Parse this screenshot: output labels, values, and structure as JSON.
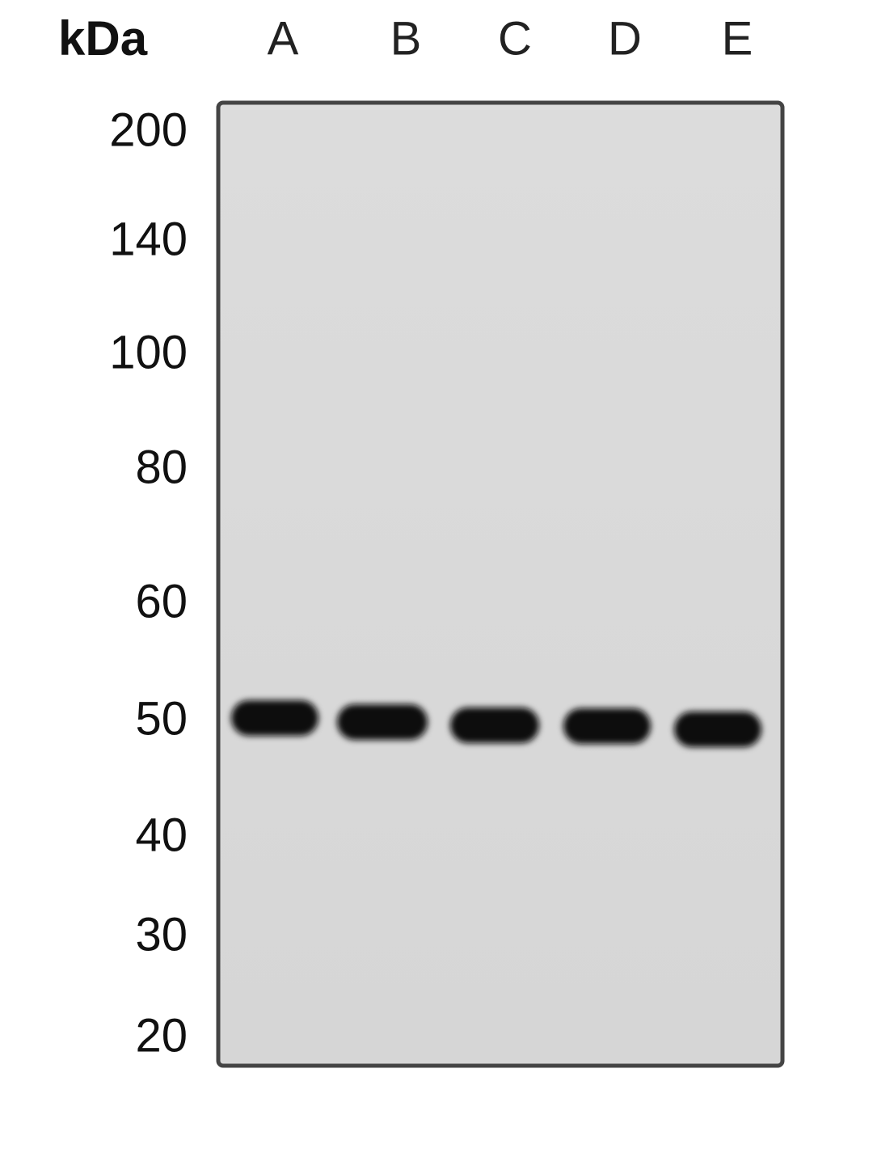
{
  "unit_label": "kDa",
  "lanes": [
    "A",
    "B",
    "C",
    "D",
    "E"
  ],
  "markers": [
    "200",
    "140",
    "100",
    "80",
    "60",
    "50",
    "40",
    "30",
    "20"
  ]
}
